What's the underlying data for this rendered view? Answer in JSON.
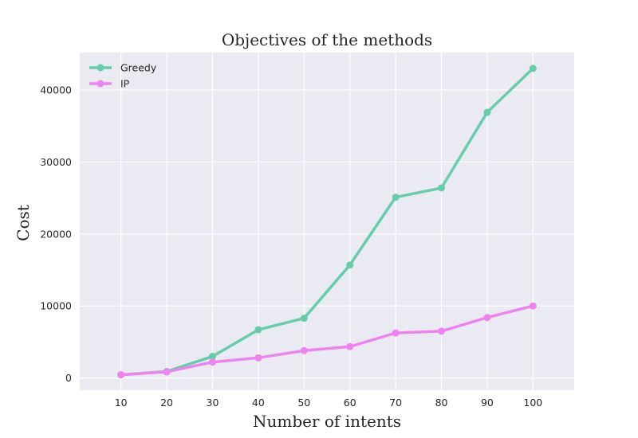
{
  "chart_data": {
    "type": "line",
    "title": "Objectives of the methods",
    "xlabel": "Number of intents",
    "ylabel": "Cost",
    "x": [
      10,
      20,
      30,
      40,
      50,
      60,
      70,
      80,
      90,
      100
    ],
    "x_ticks": [
      "10",
      "20",
      "30",
      "40",
      "50",
      "60",
      "70",
      "80",
      "90",
      "100"
    ],
    "y_ticks": [
      "0",
      "10000",
      "20000",
      "30000",
      "40000"
    ],
    "y_tick_values": [
      0,
      10000,
      20000,
      30000,
      40000
    ],
    "xlim": [
      1,
      109
    ],
    "ylim": [
      -1700,
      45200
    ],
    "grid": true,
    "legend_position": "top-left",
    "series": [
      {
        "name": "Greedy",
        "color": "#66cdaa",
        "values": [
          450,
          900,
          3000,
          6700,
          8300,
          15700,
          25100,
          26400,
          36900,
          43000
        ]
      },
      {
        "name": "IP",
        "color": "#ee82ee",
        "values": [
          450,
          850,
          2200,
          2800,
          3800,
          4350,
          6250,
          6500,
          8400,
          10000
        ]
      }
    ]
  }
}
